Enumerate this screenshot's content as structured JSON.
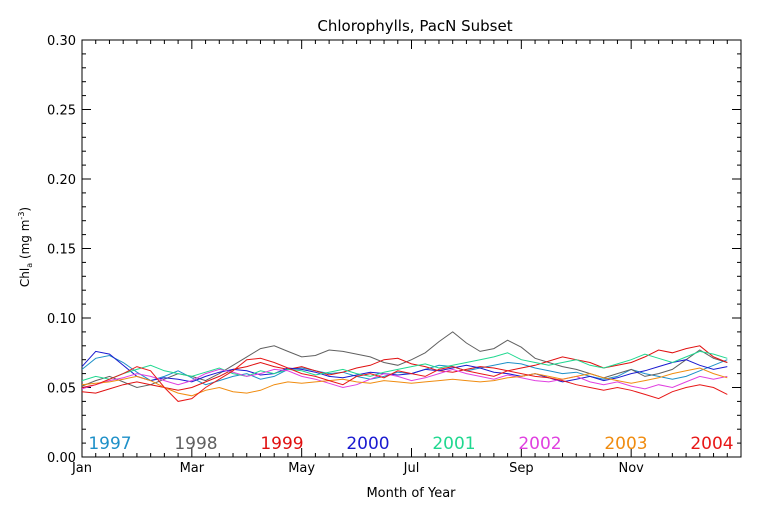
{
  "chart_data": {
    "type": "line",
    "title": "Chlorophylls, PacN Subset",
    "xlabel": "Month of Year",
    "ylabel_main": "Chl",
    "ylabel_sub": "a",
    "ylabel_unit_open": " (mg m",
    "ylabel_unit_sup": "-3",
    "ylabel_unit_close": ")",
    "xlim": [
      0,
      12
    ],
    "ylim": [
      0,
      0.3
    ],
    "x_ticks": [
      {
        "value": 0,
        "label": "Jan"
      },
      {
        "value": 2,
        "label": "Mar"
      },
      {
        "value": 4,
        "label": "May"
      },
      {
        "value": 6,
        "label": "Jul"
      },
      {
        "value": 8,
        "label": "Sep"
      },
      {
        "value": 10,
        "label": "Nov"
      }
    ],
    "y_ticks": [
      {
        "value": 0.0,
        "label": "0.00"
      },
      {
        "value": 0.05,
        "label": "0.05"
      },
      {
        "value": 0.1,
        "label": "0.10"
      },
      {
        "value": 0.15,
        "label": "0.15"
      },
      {
        "value": 0.2,
        "label": "0.20"
      },
      {
        "value": 0.25,
        "label": "0.25"
      },
      {
        "value": 0.3,
        "label": "0.30"
      }
    ],
    "x_interval_months": 0.25,
    "legend_placement": "bottom, inside plot",
    "series": [
      {
        "name": "1997",
        "color": "#1e90c8",
        "values": [
          0.063,
          0.071,
          0.073,
          0.068,
          0.061,
          0.055,
          0.058,
          0.062,
          0.057,
          0.052,
          0.055,
          0.058,
          0.06,
          0.056,
          0.058,
          0.063,
          0.064,
          0.062,
          0.06,
          0.061,
          0.058,
          0.056,
          0.058,
          0.061,
          0.06,
          0.063,
          0.066,
          0.065,
          0.062,
          0.064,
          0.066,
          0.068,
          0.067,
          0.064,
          0.062,
          0.06,
          0.061,
          0.058,
          0.056,
          0.058,
          0.063,
          0.06,
          0.058,
          0.056,
          0.058,
          0.062,
          0.066,
          0.07
        ]
      },
      {
        "name": "1998",
        "color": "#606060",
        "values": [
          0.051,
          0.055,
          0.058,
          0.054,
          0.05,
          0.052,
          0.056,
          0.06,
          0.058,
          0.055,
          0.06,
          0.066,
          0.072,
          0.078,
          0.08,
          0.076,
          0.072,
          0.073,
          0.077,
          0.076,
          0.074,
          0.072,
          0.068,
          0.066,
          0.07,
          0.075,
          0.083,
          0.09,
          0.082,
          0.076,
          0.078,
          0.084,
          0.079,
          0.071,
          0.068,
          0.065,
          0.063,
          0.06,
          0.057,
          0.06,
          0.063,
          0.058,
          0.06,
          0.063,
          0.07,
          0.077,
          0.071,
          0.068
        ]
      },
      {
        "name": "1999",
        "color": "#e01010",
        "values": [
          0.047,
          0.046,
          0.049,
          0.052,
          0.054,
          0.052,
          0.05,
          0.048,
          0.05,
          0.054,
          0.058,
          0.063,
          0.065,
          0.068,
          0.065,
          0.063,
          0.065,
          0.062,
          0.059,
          0.061,
          0.064,
          0.066,
          0.07,
          0.071,
          0.067,
          0.065,
          0.062,
          0.061,
          0.063,
          0.065,
          0.064,
          0.062,
          0.064,
          0.066,
          0.069,
          0.072,
          0.07,
          0.068,
          0.064,
          0.066,
          0.068,
          0.072,
          0.077,
          0.075,
          0.078,
          0.08,
          0.072,
          0.068
        ]
      },
      {
        "name": "2000",
        "color": "#1a1ad0",
        "values": [
          0.065,
          0.076,
          0.074,
          0.066,
          0.058,
          0.055,
          0.057,
          0.056,
          0.054,
          0.058,
          0.061,
          0.063,
          0.062,
          0.059,
          0.06,
          0.064,
          0.063,
          0.061,
          0.058,
          0.057,
          0.059,
          0.061,
          0.06,
          0.059,
          0.06,
          0.063,
          0.062,
          0.064,
          0.066,
          0.064,
          0.061,
          0.06,
          0.058,
          0.06,
          0.057,
          0.054,
          0.056,
          0.058,
          0.055,
          0.057,
          0.06,
          0.062,
          0.065,
          0.068,
          0.07,
          0.066,
          0.063,
          0.065
        ]
      },
      {
        "name": "2001",
        "color": "#20d890",
        "values": [
          0.055,
          0.058,
          0.056,
          0.06,
          0.063,
          0.066,
          0.062,
          0.06,
          0.058,
          0.061,
          0.064,
          0.06,
          0.058,
          0.062,
          0.06,
          0.063,
          0.062,
          0.059,
          0.061,
          0.063,
          0.06,
          0.058,
          0.061,
          0.063,
          0.065,
          0.067,
          0.064,
          0.066,
          0.068,
          0.07,
          0.072,
          0.075,
          0.07,
          0.068,
          0.066,
          0.068,
          0.07,
          0.066,
          0.064,
          0.067,
          0.07,
          0.074,
          0.071,
          0.068,
          0.072,
          0.076,
          0.074,
          0.071
        ]
      },
      {
        "name": "2002",
        "color": "#e040e0",
        "values": [
          0.049,
          0.052,
          0.055,
          0.057,
          0.06,
          0.058,
          0.055,
          0.052,
          0.055,
          0.06,
          0.063,
          0.061,
          0.058,
          0.06,
          0.063,
          0.062,
          0.058,
          0.056,
          0.053,
          0.05,
          0.052,
          0.056,
          0.06,
          0.058,
          0.055,
          0.057,
          0.06,
          0.063,
          0.06,
          0.058,
          0.056,
          0.059,
          0.057,
          0.055,
          0.054,
          0.056,
          0.058,
          0.054,
          0.052,
          0.054,
          0.051,
          0.049,
          0.052,
          0.05,
          0.054,
          0.058,
          0.056,
          0.058
        ]
      },
      {
        "name": "2003",
        "color": "#f08c10",
        "values": [
          0.052,
          0.053,
          0.054,
          0.056,
          0.058,
          0.055,
          0.05,
          0.046,
          0.044,
          0.048,
          0.05,
          0.047,
          0.046,
          0.048,
          0.052,
          0.054,
          0.053,
          0.054,
          0.055,
          0.056,
          0.054,
          0.053,
          0.055,
          0.054,
          0.053,
          0.054,
          0.055,
          0.056,
          0.055,
          0.054,
          0.055,
          0.057,
          0.058,
          0.06,
          0.058,
          0.056,
          0.058,
          0.06,
          0.057,
          0.055,
          0.053,
          0.055,
          0.057,
          0.06,
          0.062,
          0.064,
          0.06,
          0.057
        ]
      },
      {
        "name": "2004",
        "color": "#e81818",
        "values": [
          0.05,
          0.052,
          0.056,
          0.06,
          0.065,
          0.062,
          0.05,
          0.04,
          0.042,
          0.05,
          0.056,
          0.062,
          0.07,
          0.071,
          0.068,
          0.064,
          0.06,
          0.058,
          0.055,
          0.052,
          0.058,
          0.06,
          0.057,
          0.062,
          0.06,
          0.058,
          0.063,
          0.065,
          0.062,
          0.06,
          0.058,
          0.062,
          0.06,
          0.058,
          0.057,
          0.055,
          0.052,
          0.05,
          0.048,
          0.05,
          0.048,
          0.045,
          0.042,
          0.047,
          0.05,
          0.052,
          0.05,
          0.045
        ]
      }
    ]
  }
}
